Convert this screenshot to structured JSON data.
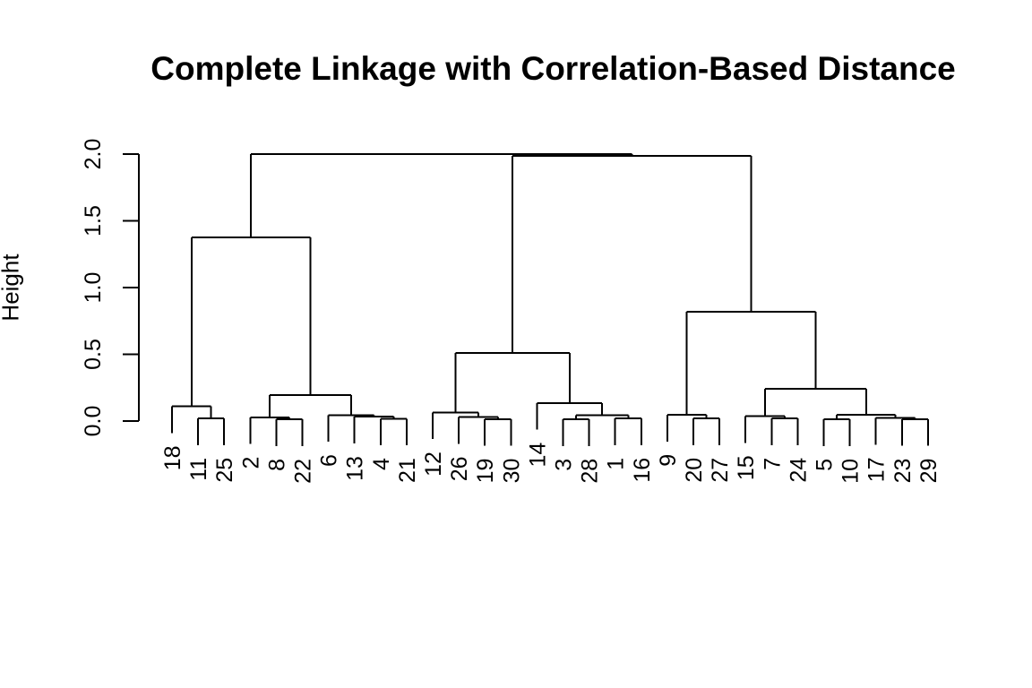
{
  "chart_data": {
    "type": "dendrogram",
    "title": "Complete Linkage with Correlation-Based Distance",
    "ylabel": "Height",
    "ylim": [
      0,
      2
    ],
    "yticks": [
      {
        "label": "0.0",
        "value": 0.0
      },
      {
        "label": "0.5",
        "value": 0.5
      },
      {
        "label": "1.0",
        "value": 1.0
      },
      {
        "label": "1.5",
        "value": 1.5
      },
      {
        "label": "2.0",
        "value": 2.0
      }
    ],
    "hang": 0.2,
    "grid": false,
    "legend": false,
    "line_color": "#000000",
    "background": "#ffffff",
    "leaf_order": [
      "18",
      "11",
      "25",
      "2",
      "8",
      "22",
      "6",
      "13",
      "4",
      "21",
      "12",
      "26",
      "19",
      "30",
      "14",
      "3",
      "28",
      "1",
      "16",
      "9",
      "20",
      "27",
      "15",
      "7",
      "24",
      "5",
      "10",
      "17",
      "23",
      "29"
    ],
    "tree": [
      [
        [
          "18",
          [
            "11",
            "25",
            0.02
          ],
          0.11
        ],
        [
          [
            "2",
            [
              "8",
              "22",
              0.012
            ],
            0.028
          ],
          [
            "6",
            [
              "13",
              [
                "4",
                "21",
                0.018
              ],
              0.032
            ],
            0.045
          ],
          0.195
        ],
        1.375
      ],
      [
        [
          [
            "12",
            [
              "26",
              [
                "19",
                "30",
                0.015
              ],
              0.029
            ],
            0.065
          ],
          [
            "14",
            [
              [
                "3",
                "28",
                0.013
              ],
              [
                "1",
                "16",
                0.02
              ],
              0.045
            ],
            0.135
          ],
          0.51
        ],
        [
          [
            "9",
            [
              "20",
              "27",
              0.02
            ],
            0.047
          ],
          [
            [
              "15",
              [
                "7",
                "24",
                0.02
              ],
              0.037
            ],
            [
              [
                "5",
                "10",
                0.012
              ],
              [
                "17",
                [
                  "23",
                  "29",
                  0.015
                ],
                0.023
              ],
              0.047
            ],
            0.24
          ],
          0.82
        ],
        1.985
      ],
      2.0
    ]
  }
}
